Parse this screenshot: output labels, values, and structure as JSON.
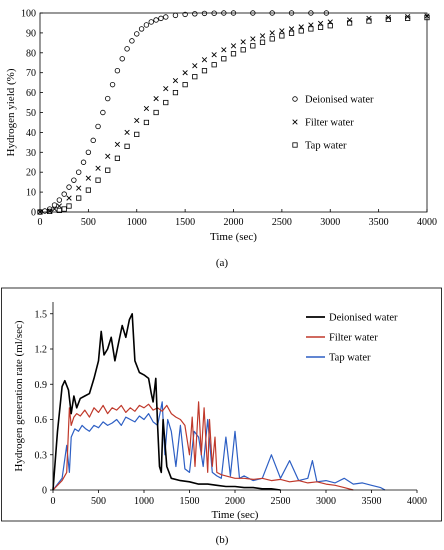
{
  "chart_data": [
    {
      "panel_label": "(a)",
      "type": "scatter",
      "xlabel": "Time (sec)",
      "ylabel": "Hydrogen yield (%)",
      "xlim": [
        0,
        4000
      ],
      "ylim": [
        0,
        100
      ],
      "xticks": [
        0,
        500,
        1000,
        1500,
        2000,
        2500,
        3000,
        3500,
        4000
      ],
      "yticks": [
        0,
        10,
        20,
        30,
        40,
        50,
        60,
        70,
        80,
        90,
        100
      ],
      "grid": false,
      "legend_position": "right",
      "series": [
        {
          "name": "Deionised water",
          "marker": "circle",
          "x": [
            0,
            50,
            100,
            150,
            200,
            250,
            300,
            350,
            400,
            450,
            500,
            550,
            600,
            650,
            700,
            750,
            800,
            850,
            900,
            950,
            1000,
            1050,
            1100,
            1150,
            1200,
            1250,
            1300,
            1400,
            1500,
            1600,
            1700,
            1800,
            1900,
            2000,
            2200,
            2400,
            2600,
            2800,
            2960
          ],
          "y": [
            0,
            0.5,
            1.5,
            3.5,
            6,
            9,
            12.5,
            16,
            20,
            25,
            30,
            36,
            43,
            50,
            57,
            64,
            71,
            77,
            82,
            86,
            89.5,
            92,
            94,
            95.5,
            96.5,
            97.3,
            98,
            98.8,
            99.3,
            99.6,
            99.8,
            99.9,
            100,
            100,
            100,
            100,
            100,
            100,
            100
          ]
        },
        {
          "name": "Filter water",
          "marker": "cross",
          "x": [
            0,
            100,
            150,
            200,
            300,
            400,
            500,
            600,
            700,
            800,
            900,
            1000,
            1100,
            1200,
            1300,
            1400,
            1500,
            1600,
            1700,
            1800,
            1900,
            2000,
            2100,
            2200,
            2300,
            2400,
            2500,
            2600,
            2700,
            2800,
            2900,
            3000,
            3200,
            3400,
            3600,
            3800,
            4000
          ],
          "y": [
            0,
            0.5,
            1.5,
            3,
            7,
            12,
            17,
            22,
            28,
            34,
            40,
            46,
            52,
            57,
            62,
            66,
            70,
            73.5,
            76.5,
            79,
            81.5,
            83.5,
            85.5,
            87,
            88.5,
            90,
            91,
            92,
            93,
            94,
            94.8,
            95.5,
            96.5,
            97.3,
            97.8,
            98.2,
            98.5
          ]
        },
        {
          "name": "Tap water",
          "marker": "square",
          "x": [
            0,
            100,
            200,
            250,
            300,
            400,
            500,
            600,
            700,
            800,
            900,
            1000,
            1100,
            1200,
            1300,
            1400,
            1500,
            1600,
            1700,
            1800,
            1900,
            2000,
            2100,
            2200,
            2300,
            2400,
            2500,
            2600,
            2700,
            2800,
            2900,
            3000,
            3200,
            3400,
            3600,
            3800,
            4000
          ],
          "y": [
            0,
            0.3,
            0.8,
            1.5,
            3,
            7,
            11,
            16,
            21,
            27,
            33,
            39,
            45,
            50,
            55,
            60,
            64,
            68,
            71,
            74,
            77,
            79.5,
            81.5,
            83.5,
            85.3,
            87,
            88.5,
            89.8,
            91,
            92,
            92.8,
            93.6,
            95,
            96,
            96.8,
            97.3,
            97.7
          ]
        }
      ]
    },
    {
      "panel_label": "(b)",
      "type": "line",
      "xlabel": "Time (sec)",
      "ylabel": "Hydrogen generation rate (ml/sec)",
      "xlim": [
        0,
        4000
      ],
      "ylim": [
        0,
        1.6
      ],
      "xticks": [
        0,
        500,
        1000,
        1500,
        2000,
        2500,
        3000,
        3500,
        4000
      ],
      "yticks": [
        0,
        0.3,
        0.6,
        0.9,
        1.2,
        1.5
      ],
      "ytick_labels": [
        "0",
        "0.3",
        "0.6",
        "0.9",
        "1.2",
        "1.5"
      ],
      "grid": false,
      "legend_position": "top-right",
      "series": [
        {
          "name": "Deionised water",
          "color": "#000000",
          "x": [
            0,
            50,
            100,
            130,
            170,
            200,
            230,
            260,
            300,
            350,
            400,
            450,
            500,
            530,
            560,
            600,
            640,
            680,
            720,
            760,
            800,
            840,
            870,
            900,
            950,
            1000,
            1050,
            1080,
            1100,
            1130,
            1150,
            1170,
            1190,
            1210,
            1250,
            1300,
            1400,
            1500,
            1600,
            1700,
            1800,
            1900,
            2000,
            2100,
            2200,
            2300,
            2400,
            2500
          ],
          "y": [
            0,
            0.5,
            0.88,
            0.93,
            0.85,
            0.65,
            0.8,
            0.7,
            0.78,
            0.8,
            0.82,
            0.95,
            1.1,
            1.35,
            1.15,
            1.2,
            1.3,
            1.1,
            1.25,
            1.4,
            1.3,
            1.45,
            1.5,
            1.1,
            1.0,
            0.98,
            0.95,
            0.82,
            0.75,
            0.95,
            0.55,
            0.2,
            0.15,
            0.6,
            0.2,
            0.1,
            0.08,
            0.07,
            0.05,
            0.05,
            0.04,
            0.03,
            0.03,
            0.02,
            0.02,
            0.01,
            0.01,
            0
          ]
        },
        {
          "name": "Filter water",
          "color": "#c0392b",
          "x": [
            0,
            100,
            150,
            180,
            200,
            230,
            260,
            300,
            350,
            400,
            450,
            500,
            550,
            600,
            650,
            700,
            750,
            800,
            850,
            900,
            950,
            1000,
            1050,
            1100,
            1150,
            1200,
            1250,
            1300,
            1350,
            1400,
            1450,
            1500,
            1530,
            1560,
            1600,
            1630,
            1660,
            1700,
            1720,
            1750,
            1780,
            1800,
            1850,
            1900,
            2000,
            2100,
            2200,
            2300,
            2400,
            2500,
            2600,
            2700,
            2800,
            2900,
            3000,
            3100,
            3200,
            3300
          ],
          "y": [
            0,
            0.08,
            0.15,
            0.7,
            0.55,
            0.62,
            0.65,
            0.63,
            0.68,
            0.62,
            0.7,
            0.66,
            0.72,
            0.65,
            0.7,
            0.68,
            0.72,
            0.66,
            0.7,
            0.67,
            0.72,
            0.7,
            0.73,
            0.68,
            0.7,
            0.67,
            0.72,
            0.65,
            0.62,
            0.6,
            0.55,
            0.3,
            0.62,
            0.2,
            0.75,
            0.3,
            0.7,
            0.15,
            0.6,
            0.2,
            0.45,
            0.15,
            0.13,
            0.12,
            0.1,
            0.1,
            0.09,
            0.1,
            0.08,
            0.09,
            0.07,
            0.08,
            0.06,
            0.07,
            0.05,
            0.04,
            0.02,
            0
          ]
        },
        {
          "name": "Tap water",
          "color": "#2d5fc4",
          "x": [
            0,
            100,
            150,
            180,
            200,
            240,
            280,
            320,
            360,
            400,
            450,
            500,
            550,
            600,
            650,
            700,
            750,
            800,
            850,
            900,
            950,
            1000,
            1050,
            1100,
            1150,
            1200,
            1230,
            1260,
            1300,
            1350,
            1400,
            1450,
            1500,
            1550,
            1600,
            1650,
            1700,
            1750,
            1800,
            1850,
            1900,
            1950,
            2000,
            2050,
            2100,
            2200,
            2300,
            2400,
            2500,
            2600,
            2700,
            2800,
            2850,
            2900,
            3000,
            3100,
            3200,
            3300,
            3400,
            3500,
            3600,
            3650
          ],
          "y": [
            0,
            0.1,
            0.38,
            0.15,
            0.45,
            0.52,
            0.5,
            0.55,
            0.52,
            0.5,
            0.55,
            0.53,
            0.58,
            0.55,
            0.57,
            0.6,
            0.55,
            0.62,
            0.6,
            0.58,
            0.63,
            0.6,
            0.65,
            0.58,
            0.55,
            0.75,
            0.3,
            0.6,
            0.5,
            0.2,
            0.55,
            0.18,
            0.15,
            0.5,
            0.45,
            0.2,
            0.6,
            0.15,
            0.12,
            0.1,
            0.45,
            0.12,
            0.5,
            0.1,
            0.12,
            0.08,
            0.1,
            0.3,
            0.1,
            0.25,
            0.08,
            0.1,
            0.25,
            0.07,
            0.08,
            0.06,
            0.1,
            0.05,
            0.06,
            0.04,
            0.02,
            0
          ]
        }
      ]
    }
  ]
}
